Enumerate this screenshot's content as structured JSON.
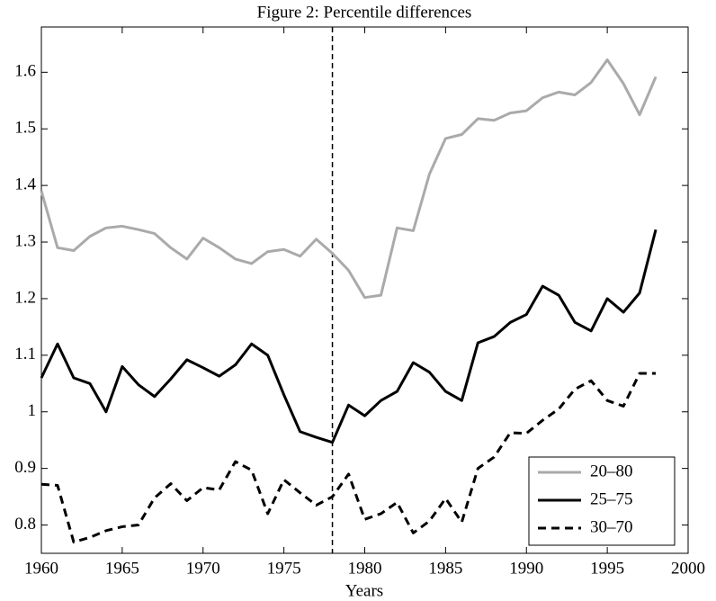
{
  "chart_data": {
    "type": "line",
    "title": "Figure 2: Percentile differences",
    "x_label": "Years",
    "x": [
      1960,
      1961,
      1962,
      1963,
      1964,
      1965,
      1966,
      1967,
      1968,
      1969,
      1970,
      1971,
      1972,
      1973,
      1974,
      1975,
      1976,
      1977,
      1978,
      1979,
      1980,
      1981,
      1982,
      1983,
      1984,
      1985,
      1986,
      1987,
      1988,
      1989,
      1990,
      1991,
      1992,
      1993,
      1994,
      1995,
      1996,
      1997,
      1998
    ],
    "series": [
      {
        "name": "20–80",
        "color": "#aaaaaa",
        "style": "solid",
        "values": [
          1.39,
          1.29,
          1.285,
          1.31,
          1.325,
          1.328,
          1.322,
          1.315,
          1.29,
          1.27,
          1.307,
          1.29,
          1.27,
          1.262,
          1.283,
          1.287,
          1.275,
          1.305,
          1.28,
          1.25,
          1.202,
          1.206,
          1.325,
          1.32,
          1.42,
          1.483,
          1.49,
          1.518,
          1.515,
          1.528,
          1.532,
          1.555,
          1.565,
          1.56,
          1.582,
          1.622,
          1.58,
          1.525,
          1.592
        ]
      },
      {
        "name": "25–75",
        "color": "#000000",
        "style": "solid",
        "values": [
          1.06,
          1.12,
          1.06,
          1.05,
          1.0,
          1.08,
          1.048,
          1.027,
          1.058,
          1.092,
          1.078,
          1.063,
          1.083,
          1.12,
          1.1,
          1.03,
          0.965,
          0.955,
          0.946,
          1.012,
          0.993,
          1.02,
          1.036,
          1.087,
          1.07,
          1.036,
          1.02,
          1.122,
          1.133,
          1.158,
          1.172,
          1.222,
          1.206,
          1.158,
          1.143,
          1.2,
          1.176,
          1.21,
          1.322
        ]
      },
      {
        "name": "30–70",
        "color": "#000000",
        "style": "dashed",
        "values": [
          0.872,
          0.87,
          0.77,
          0.778,
          0.79,
          0.797,
          0.8,
          0.848,
          0.873,
          0.843,
          0.866,
          0.862,
          0.912,
          0.897,
          0.82,
          0.88,
          0.857,
          0.835,
          0.85,
          0.89,
          0.81,
          0.82,
          0.84,
          0.786,
          0.807,
          0.847,
          0.805,
          0.9,
          0.92,
          0.963,
          0.962,
          0.985,
          1.005,
          1.04,
          1.055,
          1.02,
          1.01,
          1.068,
          1.068
        ]
      }
    ],
    "vline_x": 1978,
    "xlim": [
      1960,
      2000
    ],
    "xticks": [
      1960,
      1965,
      1970,
      1975,
      1980,
      1985,
      1990,
      1995,
      2000
    ],
    "ylim": [
      0.75,
      1.68
    ],
    "yticks": [
      0.8,
      0.9,
      1,
      1.1,
      1.2,
      1.3,
      1.4,
      1.5,
      1.6
    ],
    "grid": false,
    "legend_position": "lower-right"
  }
}
